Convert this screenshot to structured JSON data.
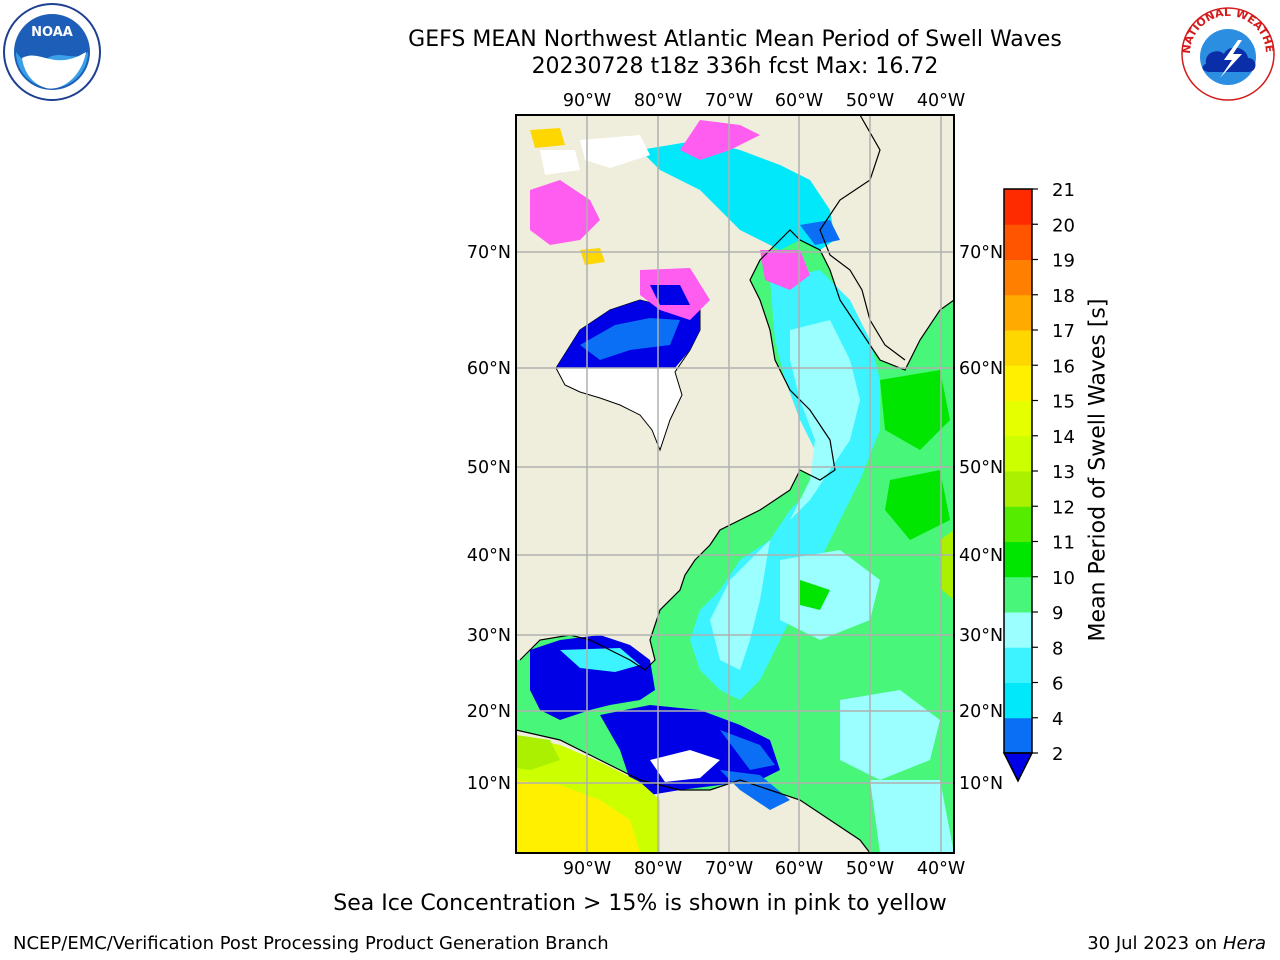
{
  "title": {
    "line1": "GEFS MEAN Northwest Atlantic Mean Period of Swell Waves",
    "line2": "20230728 t18z 336h fcst   Max: 16.72"
  },
  "map": {
    "lon_labels": [
      "90°W",
      "80°W",
      "70°W",
      "60°W",
      "50°W",
      "40°W"
    ],
    "lat_labels": [
      "70°N",
      "60°N",
      "50°N",
      "40°N",
      "30°N",
      "20°N",
      "10°N"
    ],
    "land_color": "#efeedc",
    "grid_color": "#b0b0b0"
  },
  "colorbar": {
    "label": "Mean Period of Swell Waves [s]",
    "ticks": [
      "2",
      "4",
      "6",
      "8",
      "9",
      "10",
      "11",
      "12",
      "13",
      "14",
      "15",
      "16",
      "17",
      "18",
      "19",
      "20",
      "21"
    ],
    "colors": [
      "#0a6ff5",
      "#00e8fa",
      "#3cf3ff",
      "#9bffff",
      "#48f77a",
      "#00e600",
      "#55ec00",
      "#aaf000",
      "#ccff00",
      "#e6ff00",
      "#fff000",
      "#ffd700",
      "#ffaa00",
      "#ff8000",
      "#ff5500",
      "#ff2b00"
    ],
    "extend_color": "#0000e6"
  },
  "footnote": "Sea Ice Concentration > 15% is shown in pink to yellow",
  "credits": {
    "left": "NCEP/EMC/Verification Post Processing Product Generation Branch",
    "right_date": "30 Jul 2023 on ",
    "right_host": "Hera"
  },
  "logos": {
    "noaa_text": "NOAA",
    "nws_text": "NATIONAL WEATHER SERVICE"
  }
}
